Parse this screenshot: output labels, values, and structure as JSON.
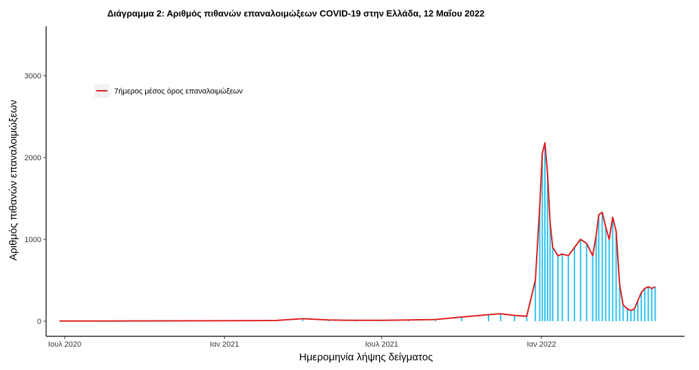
{
  "chart_data": {
    "type": "bar",
    "title": "Διάγραμμα 2: Αριθμός πιθανών επαναλοιμώξεων COVID-19 στην Ελλάδα, 12 Μαΐου 2022",
    "xlabel": "Ημερομηνία λήψης δείγματος",
    "ylabel": "Αριθμός πιθανών επαναλοιμώξεων",
    "ylim": [
      0,
      3500
    ],
    "xlim": [
      "2020-06-01",
      "2022-05-31"
    ],
    "x_ticks": [
      {
        "date": "2020-07-01",
        "label": "Ιουλ 2020"
      },
      {
        "date": "2021-01-01",
        "label": "Ιαν 2021"
      },
      {
        "date": "2021-07-01",
        "label": "Ιουλ 2021"
      },
      {
        "date": "2022-01-01",
        "label": "Ιαν 2022"
      }
    ],
    "y_ticks": [
      0,
      1000,
      2000,
      3000
    ],
    "grid": false,
    "legend_position": "top-left",
    "bar_color": "#29c2f0",
    "series": [
      {
        "name": "7ήμερος μέσος όρος επαναλοιμώξεων",
        "type": "line",
        "color": "#dd1c1c",
        "x": [
          "2020-06-25",
          "2020-10-01",
          "2021-01-01",
          "2021-03-01",
          "2021-04-01",
          "2021-05-01",
          "2021-06-01",
          "2021-07-01",
          "2021-08-01",
          "2021-09-01",
          "2021-10-01",
          "2021-11-01",
          "2021-11-15",
          "2021-12-01",
          "2021-12-15",
          "2021-12-25",
          "2021-12-30",
          "2022-01-02",
          "2022-01-05",
          "2022-01-08",
          "2022-01-11",
          "2022-01-14",
          "2022-01-20",
          "2022-01-25",
          "2022-02-01",
          "2022-02-08",
          "2022-02-15",
          "2022-02-22",
          "2022-03-01",
          "2022-03-05",
          "2022-03-08",
          "2022-03-12",
          "2022-03-16",
          "2022-03-20",
          "2022-03-24",
          "2022-03-28",
          "2022-04-01",
          "2022-04-05",
          "2022-04-10",
          "2022-04-14",
          "2022-04-18",
          "2022-04-22",
          "2022-04-26",
          "2022-04-30",
          "2022-05-04",
          "2022-05-08",
          "2022-05-12"
        ],
        "values": [
          2,
          3,
          5,
          8,
          30,
          15,
          10,
          10,
          15,
          20,
          50,
          80,
          90,
          70,
          60,
          500,
          1400,
          2050,
          2180,
          1800,
          1200,
          900,
          800,
          820,
          800,
          900,
          1000,
          950,
          800,
          1050,
          1300,
          1330,
          1150,
          1000,
          1270,
          1100,
          450,
          200,
          150,
          130,
          150,
          250,
          350,
          400,
          420,
          400,
          420
        ]
      }
    ],
    "bars": {
      "x": [
        "2020-07-01",
        "2020-10-01",
        "2021-01-01",
        "2021-03-01",
        "2021-04-01",
        "2021-05-01",
        "2021-06-01",
        "2021-07-01",
        "2021-08-01",
        "2021-09-01",
        "2021-10-01",
        "2021-11-01",
        "2021-11-15",
        "2021-12-01",
        "2021-12-15",
        "2021-12-25",
        "2021-12-30",
        "2022-01-02",
        "2022-01-05",
        "2022-01-08",
        "2022-01-11",
        "2022-01-14",
        "2022-01-20",
        "2022-01-25",
        "2022-02-01",
        "2022-02-08",
        "2022-02-15",
        "2022-02-22",
        "2022-03-01",
        "2022-03-05",
        "2022-03-08",
        "2022-03-12",
        "2022-03-16",
        "2022-03-20",
        "2022-03-24",
        "2022-03-28",
        "2022-04-01",
        "2022-04-05",
        "2022-04-10",
        "2022-04-14",
        "2022-04-18",
        "2022-04-22",
        "2022-04-26",
        "2022-04-30",
        "2022-05-04",
        "2022-05-08",
        "2022-05-12"
      ],
      "values": [
        2,
        3,
        5,
        8,
        30,
        15,
        10,
        10,
        15,
        20,
        50,
        80,
        90,
        70,
        60,
        500,
        1400,
        2050,
        2180,
        1800,
        1200,
        900,
        800,
        820,
        800,
        900,
        1000,
        950,
        800,
        1050,
        1300,
        1330,
        1150,
        1000,
        1270,
        1100,
        450,
        200,
        150,
        130,
        150,
        250,
        350,
        400,
        420,
        400,
        420
      ]
    }
  }
}
